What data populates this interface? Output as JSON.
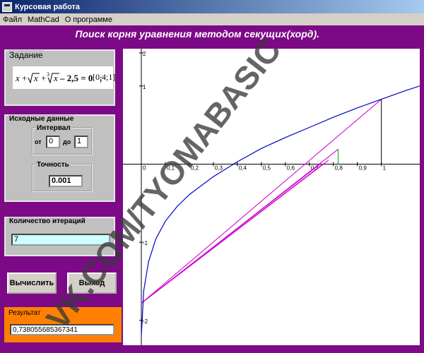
{
  "window": {
    "title": "Курсовая работа"
  },
  "menu": [
    "Файл",
    "MathCad",
    "О программе"
  ],
  "heading": "Поиск корня уравнения  методом секущих(хорд).",
  "task": {
    "legend": "Задание",
    "interval": "[0,4;1]"
  },
  "source": {
    "legend": "Исходные данные",
    "interval_legend": "Интервал",
    "from_label": "от",
    "from_value": "0",
    "to_label": "до",
    "to_value": "1",
    "accuracy_legend": "Точность",
    "accuracy_value": "0.001"
  },
  "iterations": {
    "legend": "Количество итераций",
    "value": "7"
  },
  "buttons": {
    "calculate": "Вычислить",
    "exit": "Выход"
  },
  "result": {
    "legend": "Результат",
    "value": "0,738055685367341"
  },
  "watermark": "VK.COM/TYOMABASIC",
  "colors": {
    "window_bg": "#7c0a86",
    "curve": "#0000cc",
    "chords": "#cc00cc",
    "result_bg": "#ff8000",
    "iter_bg": "#ccffff",
    "marker": "#00aa00"
  },
  "chart_data": {
    "type": "line",
    "x_ticks": [
      "0",
      "0,1",
      "0,2",
      "0,3",
      "0,4",
      "0,5",
      "0,6",
      "0,7",
      "0,8",
      "0,9",
      "1"
    ],
    "y_ticks": [
      "2",
      "1",
      "-1",
      "-2"
    ],
    "xlim": [
      0,
      1.16
    ],
    "ylim": [
      -2.3,
      1.45
    ],
    "series": [
      {
        "x": [
          0,
          0.01,
          0.03,
          0.06,
          0.1,
          0.15,
          0.2,
          0.3,
          0.4,
          0.5,
          0.6,
          0.7,
          0.8,
          0.9,
          1.0,
          1.1,
          1.16
        ],
        "y": [
          -2.2,
          -1.62,
          -1.25,
          -0.96,
          -0.73,
          -0.54,
          -0.39,
          -0.16,
          0.03,
          0.2,
          0.34,
          0.47,
          0.6,
          0.72,
          0.83,
          0.94,
          1.0
        ]
      }
    ],
    "chords": [
      {
        "x1": 0,
        "y1": -1.78,
        "x2": 1.0,
        "y2": 0.83
      },
      {
        "x1": 0,
        "y1": -1.78,
        "x2": 0.82,
        "y2": 0.19
      },
      {
        "x1": 0,
        "y1": -1.78,
        "x2": 0.78,
        "y2": 0.05
      },
      {
        "x1": 0,
        "y1": -1.78,
        "x2": 0.76,
        "y2": 0.01
      },
      {
        "x1": 0,
        "y1": -1.78,
        "x2": 0.745,
        "y2": 0.0
      }
    ]
  }
}
